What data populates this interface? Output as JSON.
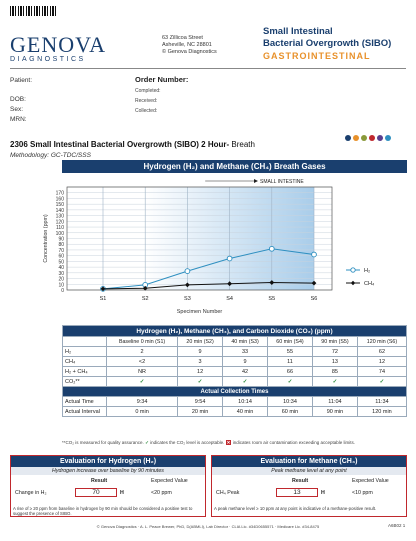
{
  "lab": {
    "logo_main": "GENOVA",
    "logo_sub": "DIAGNOSTICS",
    "address": [
      "63 Zillicoa Street",
      "Asheville, NC  28801",
      "© Genova Diagnostics"
    ]
  },
  "test": {
    "title_line1": "Small Intestinal",
    "title_line2": "Bacterial Overgrowth (SIBO)",
    "category": "GASTROINTESTINAL"
  },
  "patient": {
    "labels": [
      "Patient:",
      "DOB:",
      "Sex:",
      "MRN:"
    ],
    "order_title": "Order Number:",
    "order_fields": [
      "Completed:",
      "Received:",
      "Collected:"
    ]
  },
  "brand_dots": [
    "#1a3f6e",
    "#e8912b",
    "#8a9a3a",
    "#c0282d",
    "#5a3f8e",
    "#2e8fc0"
  ],
  "report": {
    "title_bold": "2306 Small Intestinal Bacterial Overgrowth (SIBO) 2 Hour-",
    "title_norm": " Breath",
    "methodology": "Methodology: GC-TDC/SSS"
  },
  "chart_header": "Hydrogen (H₂) and Methane (CH₄) Breath Gases",
  "chart_data": {
    "type": "line",
    "categories": [
      "S1",
      "S2",
      "S3",
      "S4",
      "S5",
      "S6"
    ],
    "series": [
      {
        "name": "H₂",
        "values": [
          2,
          9,
          33,
          55,
          72,
          62
        ],
        "color": "#2e8fc0"
      },
      {
        "name": "CH₄",
        "values": [
          2,
          3,
          9,
          11,
          13,
          12
        ],
        "color": "#111111"
      }
    ],
    "ylabel": "Concentration (ppm)",
    "xlabel": "Specimen Number",
    "ylim": [
      0,
      180
    ],
    "yticks": [
      0,
      10,
      20,
      30,
      40,
      50,
      60,
      70,
      80,
      90,
      100,
      110,
      120,
      130,
      140,
      150,
      160,
      170,
      180
    ],
    "annotation": "SMALL INTESTINE",
    "legend_position": "right"
  },
  "gas_table": {
    "title": "Hydrogen (H₂), Methane (CH₄), and Carbon Dioxide (CO₂) (ppm)",
    "columns": [
      "Baseline 0 min (S1)",
      "20 min (S2)",
      "40 min (S3)",
      "60 min (S4)",
      "90 min (S5)",
      "120 min (S6)"
    ],
    "rows": [
      {
        "label": "H₂",
        "values": [
          "2",
          "9",
          "33",
          "55",
          "72",
          "62"
        ]
      },
      {
        "label": "CH₄",
        "values": [
          "<2",
          "3",
          "9",
          "11",
          "13",
          "12"
        ]
      },
      {
        "label": "H₂ + CH₄",
        "values": [
          "NR",
          "12",
          "42",
          "66",
          "85",
          "74"
        ]
      },
      {
        "label": "CO₂**",
        "values": [
          "✓",
          "✓",
          "✓",
          "✓",
          "✓",
          "✓"
        ]
      }
    ],
    "times_title": "Actual Collection Times",
    "time_rows": [
      {
        "label": "Actual Time",
        "values": [
          "9:34",
          "9:54",
          "10:14",
          "10:34",
          "11:04",
          "11:34"
        ]
      },
      {
        "label": "Actual Interval",
        "values": [
          "0 min",
          "20 min",
          "40 min",
          "60 min",
          "90 min",
          "120 min"
        ]
      }
    ],
    "footnote_a": "**CO₂ is measured for quality assurance.",
    "footnote_b": "indicates the CO₂ level is acceptable.",
    "footnote_c": "indicates room air contamination exceeding acceptable limits."
  },
  "eval_h2": {
    "title": "Evaluation for Hydrogen (H₂)",
    "subtitle": "Hydrogen increase over baseline by 90 minutes",
    "result_label": "Result",
    "expected_label": "Expected Value",
    "row_label": "Change in H₂",
    "result": "70",
    "unit": "H",
    "expected": "<20 ppm",
    "note": "A rise of ≥ 20 ppm from baseline in hydrogen by 90 min should be considered a positive test to suggest the presence of SIBO."
  },
  "eval_ch4": {
    "title": "Evaluation for Methane (CH₄)",
    "subtitle": "Peak methane level at any point",
    "result_label": "Result",
    "expected_label": "Expected Value",
    "row_label": "CH₄ Peak",
    "result": "13",
    "unit": "H",
    "expected": "<10 ppm",
    "note": "A peak methane level ≥ 10 ppm at any point is indicative of a methane-positive result."
  },
  "footer": "© Genova Diagnostics · A. L. Peace Brewer, PhD, D(ABMLI), Lab Director · CLIA Lic. #34D0655571 · Medicare Lic. #34-8475",
  "page_code": "A6B02 1"
}
